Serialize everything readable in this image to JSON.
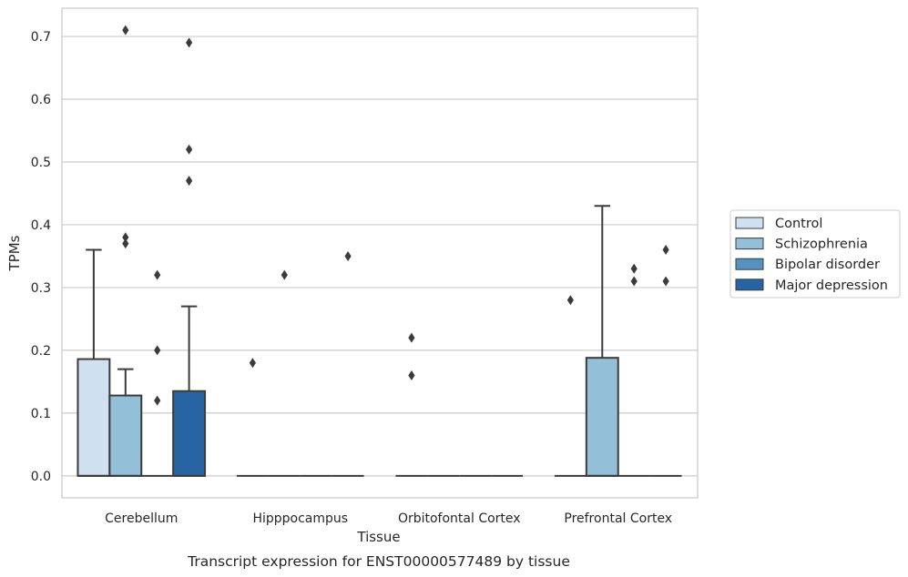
{
  "chart_data": {
    "type": "box",
    "title": "",
    "caption": "Transcript expression for ENST00000577489 by tissue",
    "xlabel": "Tissue",
    "ylabel": "TPMs",
    "ylim": [
      -0.035,
      0.745
    ],
    "yticks": [
      "0.0",
      "0.1",
      "0.2",
      "0.3",
      "0.4",
      "0.5",
      "0.6",
      "0.7"
    ],
    "ytick_values": [
      0,
      0.1,
      0.2,
      0.3,
      0.4,
      0.5,
      0.6,
      0.7
    ],
    "grid": "horizontal",
    "legend_position": "right",
    "categories": [
      "Cerebellum",
      "Hipppocampus",
      "Orbitofontal Cortex",
      "Prefrontal Cortex"
    ],
    "series": [
      {
        "name": "Control",
        "color": "#cfe1f0",
        "boxes": [
          {
            "q1": 0,
            "median": 0,
            "q3": 0.186,
            "whisker_low": 0,
            "whisker_high": 0.36,
            "outliers": []
          },
          {
            "q1": 0,
            "median": 0,
            "q3": 0,
            "whisker_low": 0,
            "whisker_high": 0,
            "outliers": [
              0.18
            ]
          },
          {
            "q1": 0,
            "median": 0,
            "q3": 0,
            "whisker_low": 0,
            "whisker_high": 0,
            "outliers": [
              0.16,
              0.22
            ]
          },
          {
            "q1": 0,
            "median": 0,
            "q3": 0,
            "whisker_low": 0,
            "whisker_high": 0,
            "outliers": [
              0.28
            ]
          }
        ]
      },
      {
        "name": "Schizophrenia",
        "color": "#94bfd9",
        "boxes": [
          {
            "q1": 0,
            "median": 0,
            "q3": 0.128,
            "whisker_low": 0,
            "whisker_high": 0.17,
            "outliers": [
              0.38,
              0.37,
              0.71
            ]
          },
          {
            "q1": 0,
            "median": 0,
            "q3": 0,
            "whisker_low": 0,
            "whisker_high": 0,
            "outliers": [
              0.32
            ]
          },
          {
            "q1": 0,
            "median": 0,
            "q3": 0,
            "whisker_low": 0,
            "whisker_high": 0,
            "outliers": []
          },
          {
            "q1": 0,
            "median": 0,
            "q3": 0.188,
            "whisker_low": 0,
            "whisker_high": 0.43,
            "outliers": []
          }
        ]
      },
      {
        "name": "Bipolar disorder",
        "color": "#5592c0",
        "boxes": [
          {
            "q1": 0,
            "median": 0,
            "q3": 0,
            "whisker_low": 0,
            "whisker_high": 0,
            "outliers": [
              0.12,
              0.2,
              0.32
            ]
          },
          {
            "q1": 0,
            "median": 0,
            "q3": 0,
            "whisker_low": 0,
            "whisker_high": 0,
            "outliers": []
          },
          {
            "q1": 0,
            "median": 0,
            "q3": 0,
            "whisker_low": 0,
            "whisker_high": 0,
            "outliers": []
          },
          {
            "q1": 0,
            "median": 0,
            "q3": 0,
            "whisker_low": 0,
            "whisker_high": 0,
            "outliers": [
              0.31,
              0.33
            ]
          }
        ]
      },
      {
        "name": "Major depression",
        "color": "#2764a3",
        "boxes": [
          {
            "q1": 0,
            "median": 0,
            "q3": 0.135,
            "whisker_low": 0,
            "whisker_high": 0.27,
            "outliers": [
              0.47,
              0.52,
              0.69
            ]
          },
          {
            "q1": 0,
            "median": 0,
            "q3": 0,
            "whisker_low": 0,
            "whisker_high": 0,
            "outliers": [
              0.35
            ]
          },
          {
            "q1": 0,
            "median": 0,
            "q3": 0,
            "whisker_low": 0,
            "whisker_high": 0,
            "outliers": []
          },
          {
            "q1": 0,
            "median": 0,
            "q3": 0,
            "whisker_low": 0,
            "whisker_high": 0,
            "outliers": [
              0.31,
              0.36
            ]
          }
        ]
      }
    ]
  }
}
